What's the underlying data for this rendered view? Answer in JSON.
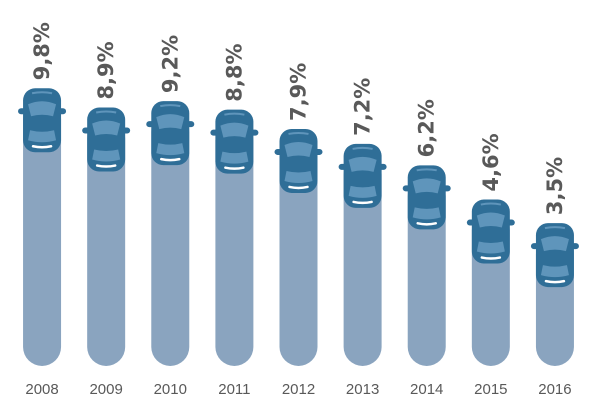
{
  "chart_data": {
    "type": "bar",
    "categories": [
      "2008",
      "2009",
      "2010",
      "2011",
      "2012",
      "2013",
      "2014",
      "2015",
      "2016"
    ],
    "values": [
      9.8,
      8.9,
      9.2,
      8.8,
      7.9,
      7.2,
      6.2,
      4.6,
      3.5
    ],
    "value_labels": [
      "9,8%",
      "8,9%",
      "9,2%",
      "8,8%",
      "7,9%",
      "7,2%",
      "6,2%",
      "4,6%",
      "3,5%"
    ],
    "color": "#8aa4bf",
    "icon_color": "#2f6e97"
  }
}
